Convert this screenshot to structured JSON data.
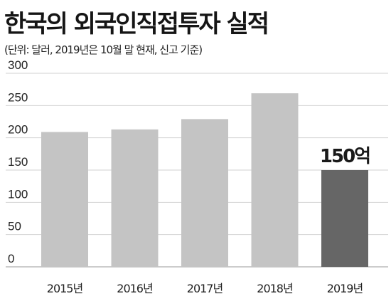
{
  "header": {
    "title": "한국의 외국인직접투자 실적",
    "subtitle": "(단위: 달러, 2019년은 10월 말 현재, 신고 기준)"
  },
  "chart_data": {
    "type": "bar",
    "title": "한국의 외국인직접투자 실적",
    "subtitle": "(단위: 달러, 2019년은 10월 말 현재, 신고 기준)",
    "categories": [
      "2015년",
      "2016년",
      "2017년",
      "2018년",
      "2019년"
    ],
    "values": [
      209,
      213,
      229,
      269,
      150
    ],
    "ylim": [
      0,
      300
    ],
    "yticks": [
      0,
      50,
      100,
      150,
      200,
      250,
      300
    ],
    "grid": true,
    "bar_colors": [
      "#c4c4c4",
      "#c4c4c4",
      "#c4c4c4",
      "#c4c4c4",
      "#666666"
    ],
    "annotations": [
      {
        "category": "2019년",
        "text": "150억"
      }
    ]
  }
}
